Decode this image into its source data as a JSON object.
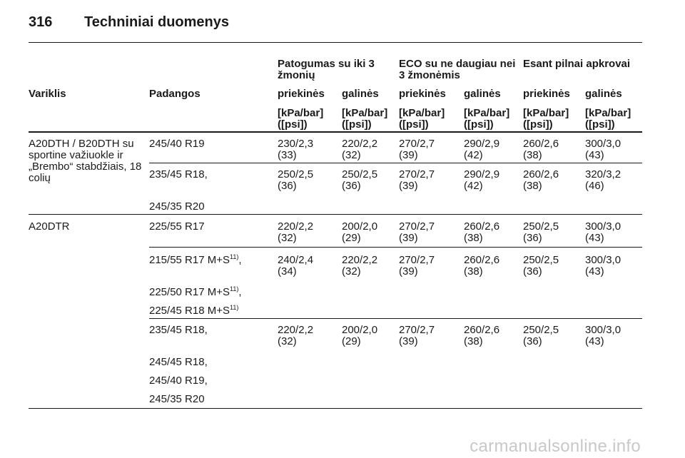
{
  "page": {
    "number": "316",
    "title": "Techniniai duomenys"
  },
  "groups": [
    "Patogumas su iki 3 žmonių",
    "ECO su ne daugiau nei 3 žmonėmis",
    "Esant pilnai apkrovai"
  ],
  "columns": {
    "engine": "Variklis",
    "tyres": "Padangos",
    "front": "priekinės",
    "rear": "galinės"
  },
  "unit": "[kPa/bar] ([psi])",
  "rows": [
    {
      "engine": "A20DTH / B20DTH su sportine važiuokle ir „Brembo“ stabdžiais, 18 colių",
      "tyre": "245/40 R19",
      "values": [
        "230/2,3 (33)",
        "220/2,2 (32)",
        "270/2,7 (39)",
        "290/2,9 (42)",
        "260/2,6 (38)",
        "300/3,0 (43)"
      ]
    },
    {
      "tyre": "235/45 R18,",
      "tyre2": "245/35 R20",
      "values": [
        "250/2,5 (36)",
        "250/2,5 (36)",
        "270/2,7 (39)",
        "290/2,9 (42)",
        "260/2,6 (38)",
        "320/3,2 (46)"
      ]
    },
    {
      "engine": "A20DTR",
      "tyre": "225/55 R17",
      "values": [
        "220/2,2 (32)",
        "200/2,0 (29)",
        "270/2,7 (39)",
        "260/2,6 (38)",
        "250/2,5 (36)",
        "300/3,0 (43)"
      ]
    },
    {
      "tyres": [
        "215/55 R17 M+S",
        "225/50 R17 M+S",
        "225/45 R18 M+S"
      ],
      "note": "11)",
      "values": [
        "240/2,4 (34)",
        "220/2,2 (32)",
        "270/2,7 (39)",
        "260/2,6 (38)",
        "250/2,5 (36)",
        "300/3,0 (43)"
      ]
    },
    {
      "tyres": [
        "235/45 R18,",
        "245/45 R18,",
        "245/40 R19,",
        "245/35 R20"
      ],
      "values": [
        "220/2,2 (32)",
        "200/2,0 (29)",
        "270/2,7 (39)",
        "260/2,6 (38)",
        "250/2,5 (36)",
        "300/3,0 (43)"
      ]
    }
  ],
  "watermark": "carmanualsonline.info"
}
